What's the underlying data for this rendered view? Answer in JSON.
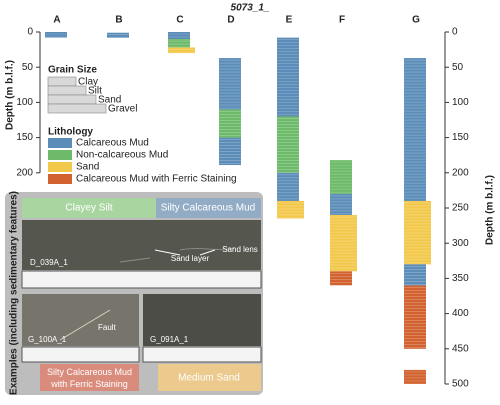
{
  "chart_data": {
    "type": "core-log",
    "title": "5073_1_",
    "ylabel": "Depth (m b.l.f.)",
    "ylim": [
      0,
      500
    ],
    "inverted": true,
    "yticks": [
      0,
      50,
      100,
      150,
      200,
      250,
      300,
      350,
      400,
      450,
      500
    ],
    "left_yticks": [
      0,
      50,
      100,
      150,
      200
    ],
    "holes": [
      {
        "name": "A",
        "intervals": [
          {
            "top": 0,
            "bottom": 8,
            "lith": 0
          }
        ]
      },
      {
        "name": "B",
        "intervals": [
          {
            "top": 1,
            "bottom": 8,
            "lith": 0
          }
        ]
      },
      {
        "name": "C",
        "intervals": [
          {
            "top": 0,
            "bottom": 10,
            "lith": 0
          },
          {
            "top": 10,
            "bottom": 22,
            "lith": 1
          },
          {
            "top": 22,
            "bottom": 30,
            "lith": 2
          }
        ]
      },
      {
        "name": "D",
        "intervals": [
          {
            "top": 37,
            "bottom": 110,
            "lith": 0
          },
          {
            "top": 110,
            "bottom": 150,
            "lith": 1
          },
          {
            "top": 150,
            "bottom": 189,
            "lith": 0
          }
        ]
      },
      {
        "name": "E",
        "intervals": [
          {
            "top": 8,
            "bottom": 120,
            "lith": 0
          },
          {
            "top": 120,
            "bottom": 200,
            "lith": 1
          },
          {
            "top": 200,
            "bottom": 240,
            "lith": 0
          },
          {
            "top": 240,
            "bottom": 265,
            "lith": 2
          }
        ]
      },
      {
        "name": "F",
        "intervals": [
          {
            "top": 182,
            "bottom": 230,
            "lith": 1
          },
          {
            "top": 230,
            "bottom": 260,
            "lith": 0
          },
          {
            "top": 260,
            "bottom": 340,
            "lith": 2
          },
          {
            "top": 340,
            "bottom": 360,
            "lith": 3
          }
        ]
      },
      {
        "name": "G",
        "intervals": [
          {
            "top": 37,
            "bottom": 240,
            "lith": 0
          },
          {
            "top": 240,
            "bottom": 330,
            "lith": 2
          },
          {
            "top": 330,
            "bottom": 360,
            "lith": 0
          },
          {
            "top": 360,
            "bottom": 450,
            "lith": 3
          },
          {
            "top": 480,
            "bottom": 500,
            "lith": 3
          }
        ]
      }
    ],
    "grain_size_legend": {
      "title": "Grain Size",
      "items": [
        "Clay",
        "Silt",
        "Sand",
        "Gravel"
      ]
    },
    "lithology_legend": {
      "title": "Lithology",
      "items": [
        {
          "name": "Calcareous Mud",
          "color": "#5b8db8"
        },
        {
          "name": "Non-calcareous Mud",
          "color": "#6dbb6a"
        },
        {
          "name": "Sand",
          "color": "#f2c84b"
        },
        {
          "name": "Calcareous Mud with Ferric Staining",
          "color": "#d2622f"
        }
      ]
    }
  },
  "examples": {
    "title": "Examples (including sedimentary features)",
    "top_labels": [
      "Clayey Silt",
      "Silty Calcareous Mud"
    ],
    "core_1": {
      "id": "D_039A_1",
      "features": [
        "Sand layer",
        "Sand lens"
      ]
    },
    "core_2": {
      "id": "G_100A_1",
      "features": [
        "Fault"
      ]
    },
    "core_3": {
      "id": "G_091A_1"
    },
    "bottom_labels": [
      "Silty Calcareous Mud with Ferric Staining",
      "Medium Sand"
    ]
  }
}
